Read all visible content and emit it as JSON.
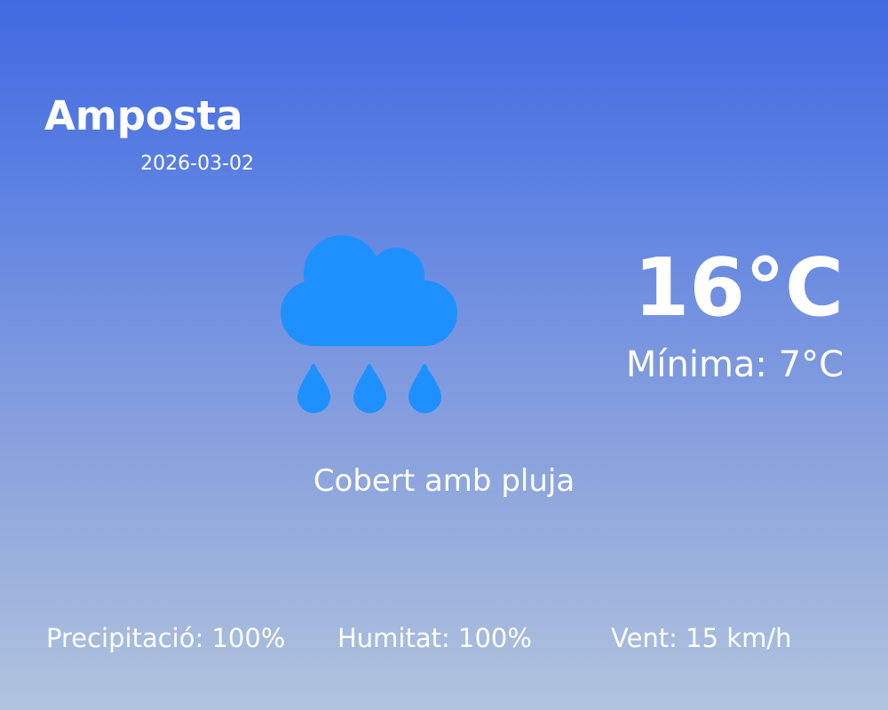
{
  "city": "Amposta",
  "date": "2026-03-02",
  "icon": "cloud-rain-icon",
  "icon_color": "#1e90ff",
  "temperature": "16°C",
  "minimum": "Mínima: 7°C",
  "description": "Cobert amb pluja",
  "stats": {
    "precipitation": "Precipitació: 100%",
    "humidity": "Humitat: 100%",
    "wind": "Vent: 15 km/h"
  }
}
